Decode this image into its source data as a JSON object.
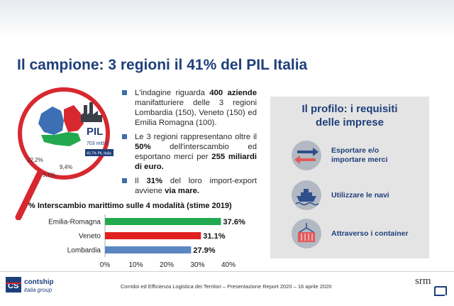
{
  "title": "Il campione: 3 regioni il 41% del PIL Italia",
  "map": {
    "pil_label": "PIL",
    "pil_value": "703 mld €",
    "pil_share": "40,7% PIL Italia",
    "pct_emilia": "22,2%",
    "pct_lombardia": "9,1%",
    "pct_veneto": "9,4%"
  },
  "bullets": {
    "b1_pre": "L'indagine riguarda ",
    "b1_bold": "400 aziende",
    "b1_post": " manifatturiere delle 3 regioni Lombardia (150), Veneto (150) ed Emilia Romagna (100).",
    "b2_pre": "Le 3 regioni rappresentano oltre il ",
    "b2_bold1": "50%",
    "b2_mid": " dell'interscambio ed esportano merci per ",
    "b2_bold2": "255 miliardi di euro.",
    "b3_pre": "Il ",
    "b3_bold1": "31%",
    "b3_mid": " del loro import-export avviene ",
    "b3_bold2": "via mare."
  },
  "panel": {
    "title_line1": "Il profilo: i requisiti",
    "title_line2": "delle imprese",
    "items": [
      {
        "line1": "Esportare e/o",
        "line2": "importare merci",
        "icon": "arrows-icon"
      },
      {
        "line1": "Utilizzare le navi",
        "line2": "",
        "icon": "ship-icon"
      },
      {
        "line1": "Attraverso i container",
        "line2": "",
        "icon": "container-icon"
      }
    ]
  },
  "chart_data": {
    "type": "bar",
    "title": "% Interscambio marittimo sulle 4 modalità (stime 2019)",
    "categories": [
      "Emilia-Romagna",
      "Veneto",
      "Lombardia"
    ],
    "values": [
      37.6,
      31.1,
      27.9
    ],
    "value_labels": [
      "37.6%",
      "31.1%",
      "27.9%"
    ],
    "colors": [
      "#22a94f",
      "#e02020",
      "#5a86c2"
    ],
    "xlim": [
      0,
      40
    ],
    "ticks": [
      "0%",
      "10%",
      "20%",
      "30%",
      "40%"
    ],
    "grid": false
  },
  "footer": {
    "text": "Corridoi ed Efficienza Logistica dei Territori – Presentazione Report 2020 – 16 aprile 2020",
    "logo_left_line1": "contship",
    "logo_left_line2": "italia group",
    "logo_left_mark": "CS",
    "logo_right": "srm"
  },
  "colors": {
    "title": "#1f3f7a",
    "accent_red": "#d8282f",
    "panel_bg": "#e4e4e4"
  }
}
